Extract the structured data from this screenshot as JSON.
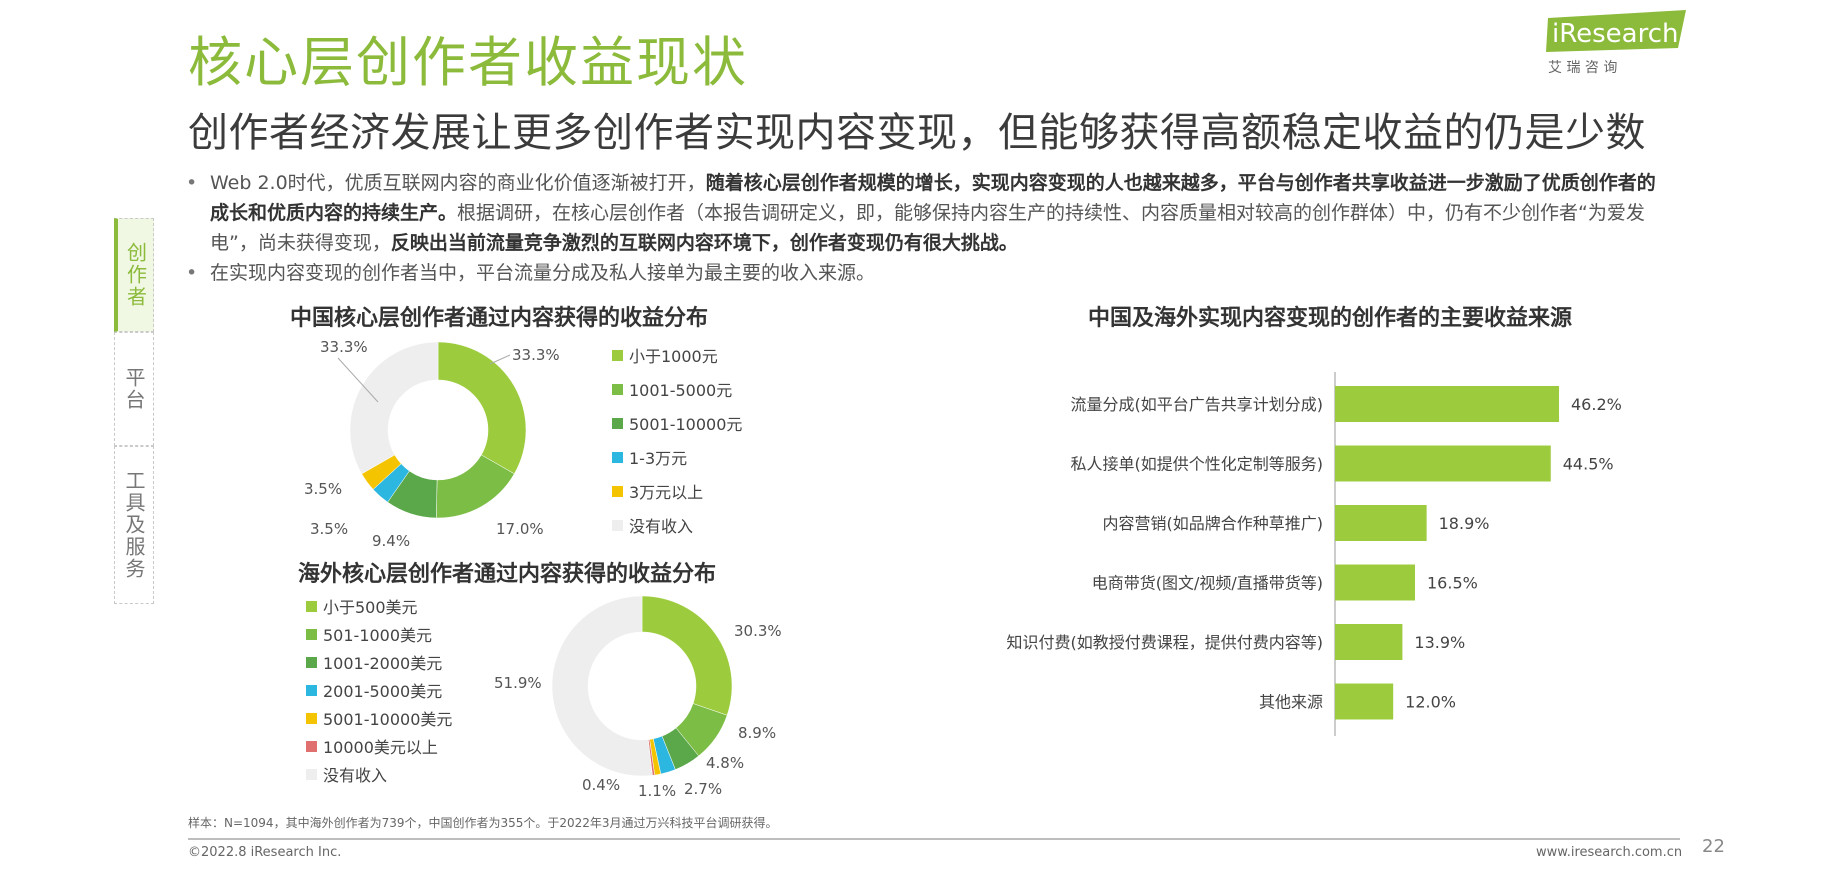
{
  "header": {
    "title": "核心层创作者收益现状",
    "subtitle": "创作者经济发展让更多创作者实现内容变现，但能够获得高额稳定收益的仍是少数"
  },
  "logo": {
    "brand": "iResearch",
    "cn": "艾  瑞  咨  询"
  },
  "bullets": [
    {
      "p1": "Web 2.0时代，优质互联网内容的商业化价值逐渐被打开，",
      "b1": "随着核心层创作者规模的增长，实现内容变现的人也越来越多，平台与创作者共享收益进一步激励了优质创作者的成长和优质内容的持续生产。",
      "p2": "根据调研，在核心层创作者（本报告调研定义，即，能够保持内容生产的持续性、内容质量相对较高的创作群体）中，仍有不少创作者“为爱发电”，尚未获得变现，",
      "b2": "反映出当前流量竞争激烈的互联网内容环境下，创作者变现仍有很大挑战。"
    },
    {
      "p1": "在实现内容变现的创作者当中，平台流量分成及私人接单为最主要的收入来源。"
    }
  ],
  "side_tabs": [
    {
      "label": "创作者",
      "active": true
    },
    {
      "label": "平台",
      "active": false
    },
    {
      "label": "工具及服务",
      "active": false
    }
  ],
  "chart_data": [
    {
      "type": "pie",
      "title": "中国核心层创作者通过内容获得的收益分布",
      "categories": [
        "小于1000元",
        "1001-5000元",
        "5001-10000元",
        "1-3万元",
        "3万元以上",
        "没有收入"
      ],
      "values": [
        33.3,
        17.0,
        9.4,
        3.5,
        3.5,
        33.3
      ],
      "labels": [
        "33.3%",
        "17.0%",
        "9.4%",
        "3.5%",
        "3.5%",
        "33.3%"
      ],
      "colors": [
        "#9ccc3d",
        "#7cbd45",
        "#5aa84a",
        "#2cb7e0",
        "#f5c400",
        "#eeeeee"
      ],
      "legend": "right"
    },
    {
      "type": "pie",
      "title": "海外核心层创作者通过内容获得的收益分布",
      "categories": [
        "小于500美元",
        "501-1000美元",
        "1001-2000美元",
        "2001-5000美元",
        "5001-10000美元",
        "10000美元以上",
        "没有收入"
      ],
      "values": [
        30.3,
        8.9,
        4.8,
        2.7,
        1.1,
        0.4,
        51.9
      ],
      "labels": [
        "30.3%",
        "8.9%",
        "4.8%",
        "2.7%",
        "1.1%",
        "0.4%",
        "51.9%"
      ],
      "colors": [
        "#9ccc3d",
        "#7cbd45",
        "#5aa84a",
        "#2cb7e0",
        "#f5c400",
        "#e07070",
        "#eeeeee"
      ],
      "legend": "left"
    },
    {
      "type": "bar",
      "orientation": "horizontal",
      "title": "中国及海外实现内容变现的创作者的主要收益来源",
      "categories": [
        "流量分成(如平台广告共享计划分成)",
        "私人接单(如提供个性化定制等服务)",
        "内容营销(如品牌合作种草推广)",
        "电商带货(图文/视频/直播带货等)",
        "知识付费(如教授付费课程，提供付费内容等)",
        "其他来源"
      ],
      "values": [
        46.2,
        44.5,
        18.9,
        16.5,
        13.9,
        12.0
      ],
      "labels": [
        "46.2%",
        "44.5%",
        "18.9%",
        "16.5%",
        "13.9%",
        "12.0%"
      ],
      "color": "#9ccc3d"
    }
  ],
  "footer": {
    "note": "样本：N=1094，其中海外创作者为739个，中国创作者为355个。于2022年3月通过万兴科技平台调研获得。",
    "copyright": "©2022.8 iResearch Inc.",
    "website": "www.iresearch.com.cn",
    "page": "22"
  }
}
